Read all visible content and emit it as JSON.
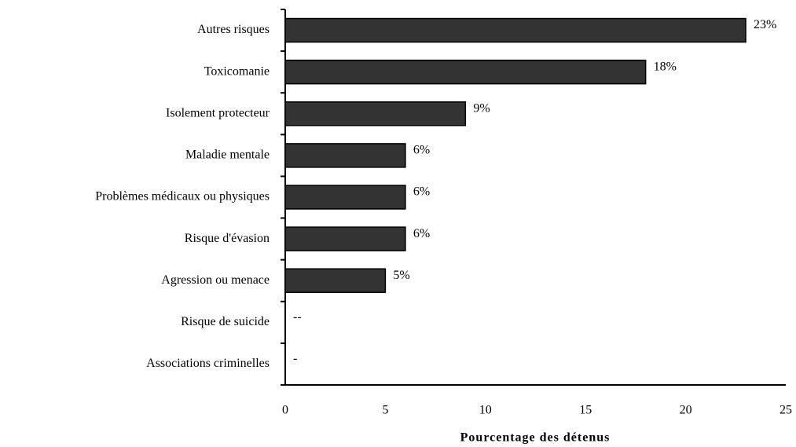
{
  "chart_data": {
    "type": "barh",
    "xlabel": "Pourcentage des détenus",
    "categories": [
      "Autres risques",
      "Toxicomanie",
      "Isolement protecteur",
      "Maladie mentale",
      "Problèmes médicaux ou physiques",
      "Risque d'évasion",
      "Agression ou menace",
      "Risque de suicide",
      "Associations criminelles"
    ],
    "values": [
      23,
      18,
      9,
      6,
      6,
      6,
      5,
      null,
      null
    ],
    "value_labels": [
      "23%",
      "18%",
      "9%",
      "6%",
      "6%",
      "6%",
      "5%",
      "--",
      "-"
    ],
    "color": "#333333",
    "xlim": [
      0,
      25
    ],
    "xticks": [
      0,
      5,
      10,
      15,
      20,
      25
    ]
  }
}
